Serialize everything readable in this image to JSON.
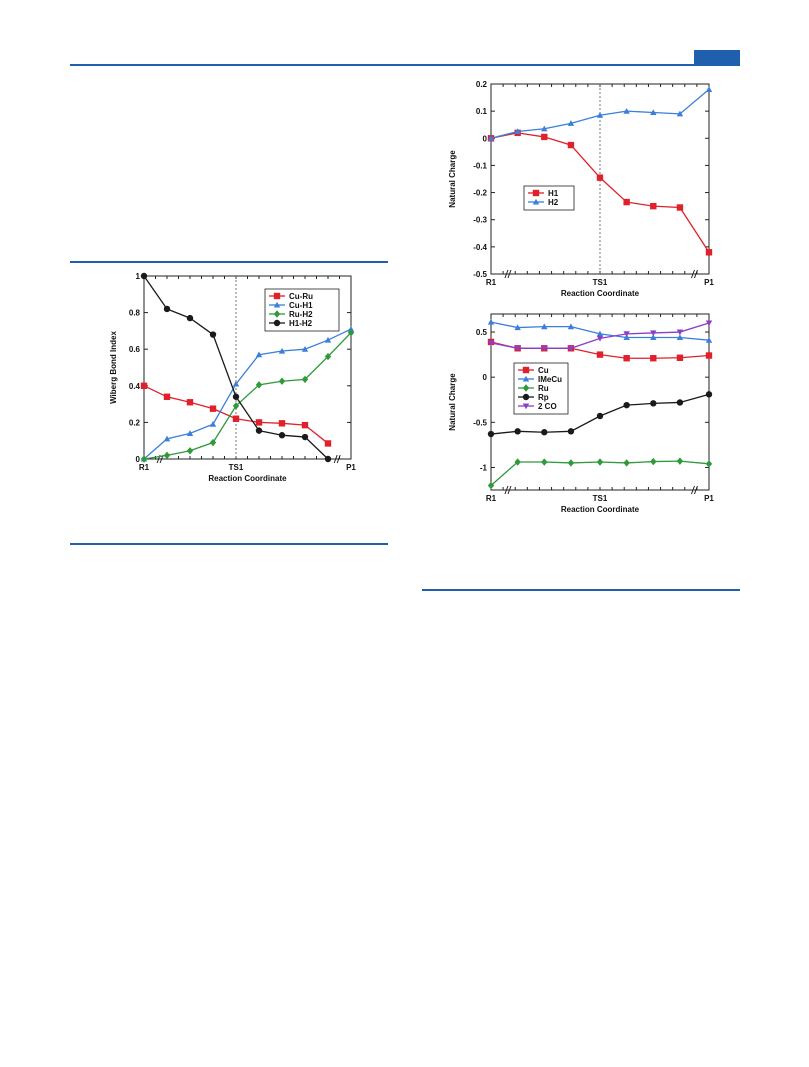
{
  "page": {
    "accent_color": "#1f5fae"
  },
  "chart_data": [
    {
      "id": "wbi",
      "type": "line",
      "title": "",
      "xlabel": "Reaction Coordinate",
      "ylabel": "Wiberg Bond Index",
      "xlim": [
        0,
        9
      ],
      "ylim": [
        0,
        1
      ],
      "yticks": [
        0,
        0.2,
        0.4,
        0.6,
        0.8,
        1
      ],
      "ytick_labels": [
        "0",
        "0.2",
        "0.4",
        "0.6",
        "0.8",
        "1"
      ],
      "xtick_labels": [
        {
          "x": 0,
          "label": "R1"
        },
        {
          "x": 4,
          "label": "TS1"
        },
        {
          "x": 9,
          "label": "P1"
        }
      ],
      "ts_line_x": 4,
      "grid": false,
      "legend_position": "top-right",
      "series": [
        {
          "name": "Cu-Ru",
          "color": "#e0202a",
          "marker": "square",
          "x": [
            0,
            1,
            2,
            3,
            4,
            5,
            6,
            7,
            8,
            9
          ],
          "y": [
            0.4,
            0.34,
            0.31,
            0.275,
            0.22,
            0.2,
            0.195,
            0.185,
            0.085,
            null
          ]
        },
        {
          "name": "Cu-H1",
          "color": "#3a7fdc",
          "marker": "triangle",
          "x": [
            0,
            1,
            2,
            3,
            4,
            5,
            6,
            7,
            8,
            9
          ],
          "y": [
            0.0,
            0.11,
            0.14,
            0.19,
            0.41,
            0.57,
            0.59,
            0.6,
            0.65,
            0.71
          ]
        },
        {
          "name": "Ru-H2",
          "color": "#2f9a3a",
          "marker": "diamond",
          "x": [
            0,
            1,
            2,
            3,
            4,
            5,
            6,
            7,
            8,
            9
          ],
          "y": [
            0.0,
            0.02,
            0.045,
            0.09,
            0.29,
            0.405,
            0.425,
            0.435,
            0.56,
            0.69
          ]
        },
        {
          "name": "H1-H2",
          "color": "#1a1a1a",
          "marker": "circle",
          "x": [
            0,
            1,
            2,
            3,
            4,
            5,
            6,
            7,
            8,
            9
          ],
          "y": [
            1.0,
            0.82,
            0.77,
            0.68,
            0.34,
            0.155,
            0.13,
            0.12,
            0.0,
            null
          ]
        }
      ]
    },
    {
      "id": "nc1",
      "type": "line",
      "title": "",
      "xlabel": "Reaction Coordinate",
      "ylabel": "Natural Charge",
      "xlim": [
        0,
        9
      ],
      "ylim": [
        -0.5,
        0.2
      ],
      "yticks": [
        -0.5,
        -0.4,
        -0.3,
        -0.2,
        -0.1,
        0,
        0.1,
        0.2
      ],
      "ytick_labels": [
        "-0.5",
        "-0.4",
        "-0.3",
        "-0.2",
        "-0.1",
        "0",
        "0.1",
        "0.2"
      ],
      "xtick_labels": [
        {
          "x": 0,
          "label": "R1"
        },
        {
          "x": 4.5,
          "label": "TS1"
        },
        {
          "x": 9,
          "label": "P1"
        }
      ],
      "ts_line_x": 4.5,
      "grid": false,
      "legend_position": "middle-left",
      "series": [
        {
          "name": "H1",
          "color": "#e0202a",
          "marker": "square",
          "x": [
            0,
            1.1,
            2.2,
            3.3,
            4.5,
            5.6,
            6.7,
            7.8,
            9
          ],
          "y": [
            0.0,
            0.02,
            0.005,
            -0.025,
            -0.145,
            -0.235,
            -0.25,
            -0.255,
            -0.42
          ]
        },
        {
          "name": "H2",
          "color": "#3a7fdc",
          "marker": "triangle",
          "x": [
            0,
            1.1,
            2.2,
            3.3,
            4.5,
            5.6,
            6.7,
            7.8,
            9
          ],
          "y": [
            0.0,
            0.025,
            0.035,
            0.055,
            0.085,
            0.1,
            0.095,
            0.09,
            0.18
          ]
        }
      ]
    },
    {
      "id": "nc2",
      "type": "line",
      "title": "",
      "xlabel": "Reaction Coordinate",
      "ylabel": "Natural Charge",
      "xlim": [
        0,
        9
      ],
      "ylim": [
        -1.25,
        0.7
      ],
      "yticks": [
        -1,
        -0.5,
        0,
        0.5
      ],
      "ytick_labels": [
        "-1",
        "-0.5",
        "0",
        "0.5"
      ],
      "xtick_labels": [
        {
          "x": 0,
          "label": "R1"
        },
        {
          "x": 4.5,
          "label": "TS1"
        },
        {
          "x": 9,
          "label": "P1"
        }
      ],
      "ts_line_x": null,
      "grid": false,
      "legend_position": "middle-left",
      "series": [
        {
          "name": "Cu",
          "color": "#e0202a",
          "marker": "square",
          "x": [
            0,
            1.1,
            2.2,
            3.3,
            4.5,
            5.6,
            6.7,
            7.8,
            9
          ],
          "y": [
            0.39,
            0.32,
            0.32,
            0.32,
            0.25,
            0.21,
            0.21,
            0.215,
            0.24
          ]
        },
        {
          "name": "IMeCu",
          "color": "#3a7fdc",
          "marker": "triangle",
          "x": [
            0,
            1.1,
            2.2,
            3.3,
            4.5,
            5.6,
            6.7,
            7.8,
            9
          ],
          "y": [
            0.61,
            0.55,
            0.56,
            0.56,
            0.48,
            0.44,
            0.44,
            0.44,
            0.41
          ]
        },
        {
          "name": "Ru",
          "color": "#2f9a3a",
          "marker": "diamond",
          "x": [
            0,
            1.1,
            2.2,
            3.3,
            4.5,
            5.6,
            6.7,
            7.8,
            9
          ],
          "y": [
            -1.2,
            -0.94,
            -0.94,
            -0.95,
            -0.94,
            -0.95,
            -0.935,
            -0.93,
            -0.96
          ]
        },
        {
          "name": "Rp",
          "color": "#1a1a1a",
          "marker": "circle",
          "x": [
            0,
            1.1,
            2.2,
            3.3,
            4.5,
            5.6,
            6.7,
            7.8,
            9
          ],
          "y": [
            -0.63,
            -0.6,
            -0.61,
            -0.6,
            -0.43,
            -0.31,
            -0.29,
            -0.28,
            -0.19
          ]
        },
        {
          "name": "2 CO",
          "color": "#8a3fc7",
          "marker": "triangle-down",
          "x": [
            0,
            1.1,
            2.2,
            3.3,
            4.5,
            5.6,
            6.7,
            7.8,
            9
          ],
          "y": [
            0.38,
            0.32,
            0.32,
            0.32,
            0.43,
            0.48,
            0.49,
            0.5,
            0.6
          ]
        }
      ]
    }
  ]
}
